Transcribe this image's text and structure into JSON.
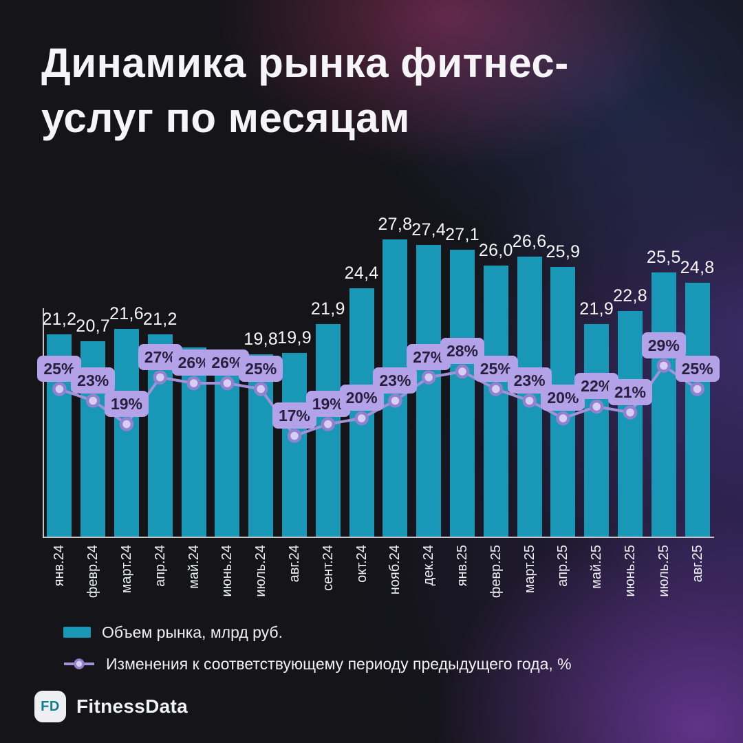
{
  "title_lines": [
    "Динамика рынка фитнес-",
    "услуг по месяцам"
  ],
  "chart_data": {
    "type": "bar",
    "subtype": "bar-with-line-overlay",
    "title": "Динамика рынка фитнес-услуг по месяцам",
    "categories": [
      "янв.24",
      "февр.24",
      "март.24",
      "апр.24",
      "май.24",
      "июнь.24",
      "июль.24",
      "авг.24",
      "сент.24",
      "окт.24",
      "нояб.24",
      "дек.24",
      "янв.25",
      "февр.25",
      "март.25",
      "апр.25",
      "май.25",
      "июнь.25",
      "июль.25",
      "авг.25"
    ],
    "series": [
      {
        "name": "Объем рынка, млрд руб.",
        "type": "bar",
        "color": "#1897b6",
        "values": [
          21.2,
          20.7,
          21.6,
          21.2,
          20.3,
          20.1,
          19.8,
          19.9,
          21.9,
          24.4,
          27.8,
          27.4,
          27.1,
          26.0,
          26.6,
          25.9,
          21.9,
          22.8,
          25.5,
          24.8
        ],
        "value_labels": [
          "21,2",
          "20,7",
          "21,6",
          "21,2",
          "",
          "",
          "19,8",
          "19,9",
          "21,9",
          "24,4",
          "27,8",
          "27,4",
          "27,1",
          "26,0",
          "26,6",
          "25,9",
          "21,9",
          "22,8",
          "25,5",
          "24,8"
        ]
      },
      {
        "name": "Изменения к соответствующему периоду предыдущего года, %",
        "type": "line",
        "color": "#a392d9",
        "marker_fill": "#d8cef3",
        "marker_stroke": "#9181cf",
        "badge_bg": "#b4a2e9",
        "badge_color": "#26203d",
        "values": [
          25,
          23,
          19,
          27,
          26,
          26,
          25,
          17,
          19,
          20,
          23,
          27,
          28,
          25,
          23,
          20,
          22,
          21,
          29,
          25
        ],
        "value_labels": [
          "25%",
          "23%",
          "19%",
          "27%",
          "26%",
          "26%",
          "25%",
          "17%",
          "19%",
          "20%",
          "23%",
          "27%",
          "28%",
          "25%",
          "23%",
          "20%",
          "22%",
          "21%",
          "29%",
          "25%"
        ]
      }
    ],
    "grid": false,
    "legend_position": "bottom-left",
    "xlabel": "",
    "ylabel": ""
  },
  "legend": {
    "items": [
      {
        "label": "Объем рынка, млрд руб."
      },
      {
        "label": "Изменения к соответствующему периоду предыдущего года, %"
      }
    ]
  },
  "footer": {
    "logo": "FD",
    "brand": "FitnessData"
  }
}
